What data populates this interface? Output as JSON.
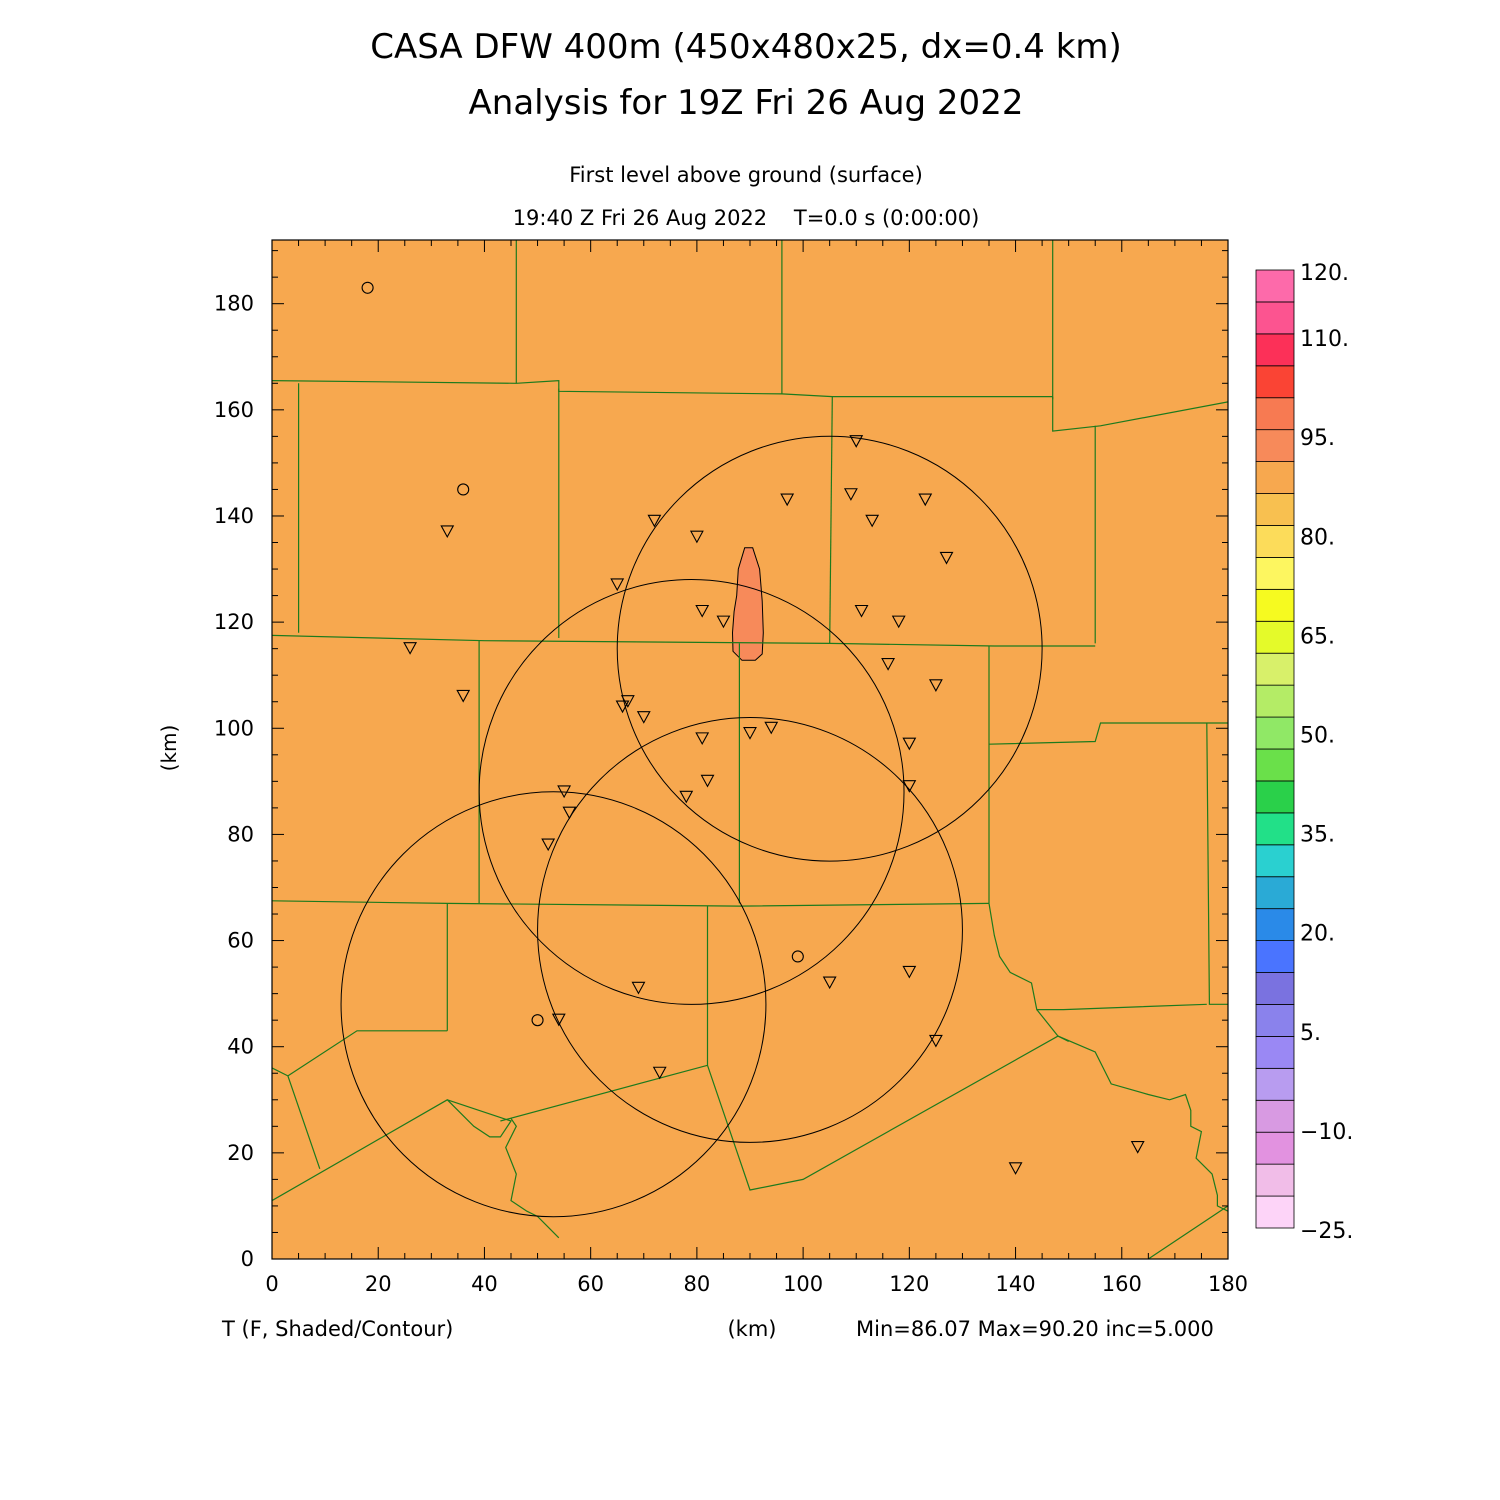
{
  "header": {
    "title_line1": "CASA DFW 400m (450x480x25, dx=0.4 km)",
    "title_line2": "Analysis for 19Z Fri 26 Aug 2022",
    "subtitle_level": "First level above ground (surface)",
    "subtitle_time": "19:40 Z Fri 26 Aug 2022    T=0.0 s (0:00:00)"
  },
  "footer": {
    "field_label": "T (F, Shaded/Contour)",
    "x_unit": "(km)",
    "stats": "Min=86.07 Max=90.20 inc=5.000"
  },
  "colors": {
    "background_field": "#f7a84f",
    "warm_cell": "#f78a5a",
    "county_lines": "#1d7a1d",
    "radar_rings": "#000000"
  },
  "chart_data": {
    "type": "heatmap",
    "xlabel": "(km)",
    "ylabel": "(km)",
    "xlim": [
      0,
      180
    ],
    "ylim": [
      0,
      192
    ],
    "x_ticks": [
      "0",
      "20",
      "40",
      "60",
      "80",
      "100",
      "120",
      "140",
      "160",
      "180"
    ],
    "y_ticks": [
      "0",
      "20",
      "40",
      "60",
      "80",
      "100",
      "120",
      "140",
      "160",
      "180"
    ],
    "field_range": {
      "min": 86.07,
      "max": 90.2,
      "inc": 5.0
    },
    "warm_region": {
      "outline": [
        [
          87.5,
          125
        ],
        [
          87.8,
          130
        ],
        [
          89,
          134
        ],
        [
          90.5,
          134
        ],
        [
          91.8,
          130
        ],
        [
          92.3,
          124
        ],
        [
          92.5,
          118
        ],
        [
          92.3,
          114
        ],
        [
          91,
          112.8
        ],
        [
          88.5,
          112.8
        ],
        [
          86.8,
          114.5
        ],
        [
          86.7,
          118
        ],
        [
          87,
          122
        ]
      ]
    },
    "radar_rings": [
      {
        "cx": 105,
        "cy": 115,
        "r": 40
      },
      {
        "cx": 79,
        "cy": 88,
        "r": 40
      },
      {
        "cx": 90,
        "cy": 62,
        "r": 40
      },
      {
        "cx": 53,
        "cy": 48,
        "r": 40
      }
    ],
    "stations_triangle": [
      [
        110,
        154
      ],
      [
        97,
        143
      ],
      [
        109,
        144
      ],
      [
        123,
        143
      ],
      [
        113,
        139
      ],
      [
        72,
        139
      ],
      [
        80,
        136
      ],
      [
        33,
        137
      ],
      [
        127,
        132
      ],
      [
        65,
        127
      ],
      [
        111,
        122
      ],
      [
        81,
        122
      ],
      [
        85,
        120
      ],
      [
        118,
        120
      ],
      [
        26,
        115
      ],
      [
        116,
        112
      ],
      [
        125,
        108
      ],
      [
        36,
        106
      ],
      [
        67,
        105
      ],
      [
        66,
        104
      ],
      [
        70,
        102
      ],
      [
        94,
        100
      ],
      [
        90,
        99
      ],
      [
        81,
        98
      ],
      [
        120,
        97
      ],
      [
        55,
        88
      ],
      [
        82,
        90
      ],
      [
        120,
        89
      ],
      [
        78,
        87
      ],
      [
        56,
        84
      ],
      [
        52,
        78
      ],
      [
        105,
        52
      ],
      [
        120,
        54
      ],
      [
        69,
        51
      ],
      [
        54,
        45
      ],
      [
        125,
        41
      ],
      [
        73,
        35
      ],
      [
        163,
        21
      ],
      [
        140,
        17
      ]
    ],
    "stations_circle": [
      [
        18,
        183
      ],
      [
        36,
        145
      ],
      [
        99,
        57
      ],
      [
        50,
        45
      ]
    ],
    "colorbar": {
      "colors": [
        "#fdd4f8",
        "#f1bde8",
        "#e292e0",
        "#d89ae2",
        "#b89cf0",
        "#9a88f4",
        "#8a82ec",
        "#7a72e0",
        "#4a74ff",
        "#2a8ae8",
        "#2aaad6",
        "#2ad0d0",
        "#22e088",
        "#2ad04a",
        "#6ae04a",
        "#90e866",
        "#b4ec66",
        "#d8f06a",
        "#e4fa2a",
        "#f6fa20",
        "#fdf660",
        "#fcdc5a",
        "#f8c050",
        "#f7a84f",
        "#f78a5a",
        "#f77a52",
        "#fa4434",
        "#fc3058",
        "#fc5490",
        "#fd6aaa"
      ],
      "labels": [
        {
          "text": "120.",
          "value": 120
        },
        {
          "text": "110.",
          "value": 110
        },
        {
          "text": "95.",
          "value": 95
        },
        {
          "text": "80.",
          "value": 80
        },
        {
          "text": "65.",
          "value": 65
        },
        {
          "text": "50.",
          "value": 50
        },
        {
          "text": "35.",
          "value": 35
        },
        {
          "text": "20.",
          "value": 20
        },
        {
          "text": "5.",
          "value": 5
        },
        {
          "text": "−10.",
          "value": -10
        },
        {
          "text": "−25.",
          "value": -25
        }
      ],
      "vmin": -25,
      "vmax": 120
    },
    "county_lines": [
      [
        [
          46,
          192
        ],
        [
          46,
          165
        ]
      ],
      [
        [
          96,
          192
        ],
        [
          96,
          163
        ]
      ],
      [
        [
          147,
          192
        ],
        [
          147,
          162
        ]
      ],
      [
        [
          0,
          165.5
        ],
        [
          46,
          165
        ],
        [
          54,
          165.5
        ],
        [
          54,
          163.5
        ],
        [
          96,
          163
        ],
        [
          105.5,
          162.5
        ],
        [
          147,
          162.5
        ]
      ],
      [
        [
          147,
          162.5
        ],
        [
          147,
          156
        ],
        [
          156,
          157
        ],
        [
          180,
          161.5
        ]
      ],
      [
        [
          5,
          165
        ],
        [
          5,
          118
        ]
      ],
      [
        [
          54,
          164
        ],
        [
          54,
          117
        ]
      ],
      [
        [
          105.5,
          162.5
        ],
        [
          105,
          116
        ]
      ],
      [
        [
          155,
          157
        ],
        [
          155,
          116
        ]
      ],
      [
        [
          0,
          117.5
        ],
        [
          40,
          116.5
        ],
        [
          105,
          116
        ],
        [
          136,
          115.5
        ],
        [
          155,
          115.5
        ]
      ],
      [
        [
          39,
          116.5
        ],
        [
          39,
          67
        ]
      ],
      [
        [
          88,
          116
        ],
        [
          88,
          67
        ]
      ],
      [
        [
          135,
          115.5
        ],
        [
          135,
          67
        ]
      ],
      [
        [
          135,
          97
        ],
        [
          155,
          97.5
        ],
        [
          156,
          101
        ],
        [
          176,
          101
        ],
        [
          180,
          101
        ]
      ],
      [
        [
          176,
          101
        ],
        [
          176.5,
          48
        ],
        [
          180,
          48
        ]
      ],
      [
        [
          0,
          67.5
        ],
        [
          33,
          67
        ],
        [
          88,
          66.5
        ],
        [
          135,
          67
        ]
      ],
      [
        [
          33,
          67
        ],
        [
          33,
          43
        ]
      ],
      [
        [
          82,
          66.5
        ],
        [
          82,
          36.5
        ]
      ],
      [
        [
          3,
          34.5
        ],
        [
          16,
          43
        ],
        [
          33,
          43
        ]
      ],
      [
        [
          0,
          11
        ],
        [
          33,
          30
        ],
        [
          38,
          25
        ],
        [
          41,
          23
        ],
        [
          43,
          23
        ],
        [
          45,
          26
        ],
        [
          33,
          30
        ]
      ],
      [
        [
          43,
          26
        ],
        [
          82,
          36.5
        ],
        [
          90,
          13
        ],
        [
          100,
          15
        ],
        [
          148,
          42
        ],
        [
          150,
          41
        ]
      ],
      [
        [
          45,
          26.5
        ],
        [
          46,
          25
        ],
        [
          44,
          21
        ],
        [
          46,
          16
        ],
        [
          45,
          11
        ],
        [
          48,
          9
        ],
        [
          50,
          8
        ],
        [
          54,
          4
        ]
      ],
      [
        [
          135,
          67
        ],
        [
          136,
          61
        ],
        [
          137,
          57
        ],
        [
          139,
          54
        ],
        [
          143,
          52
        ],
        [
          144,
          47
        ],
        [
          149,
          47
        ],
        [
          176,
          48
        ]
      ],
      [
        [
          144,
          47
        ],
        [
          148,
          42
        ],
        [
          155,
          39
        ],
        [
          158,
          33
        ],
        [
          165,
          31
        ],
        [
          169,
          30
        ],
        [
          172,
          31
        ],
        [
          173,
          28
        ],
        [
          173,
          25
        ],
        [
          175,
          24
        ],
        [
          174,
          19
        ],
        [
          177,
          16
        ],
        [
          178,
          12
        ],
        [
          178,
          10
        ],
        [
          180,
          9
        ]
      ],
      [
        [
          165,
          0
        ],
        [
          177,
          8
        ],
        [
          180,
          10
        ]
      ],
      [
        [
          0,
          36
        ],
        [
          3,
          34.5
        ],
        [
          9,
          17
        ]
      ]
    ]
  }
}
